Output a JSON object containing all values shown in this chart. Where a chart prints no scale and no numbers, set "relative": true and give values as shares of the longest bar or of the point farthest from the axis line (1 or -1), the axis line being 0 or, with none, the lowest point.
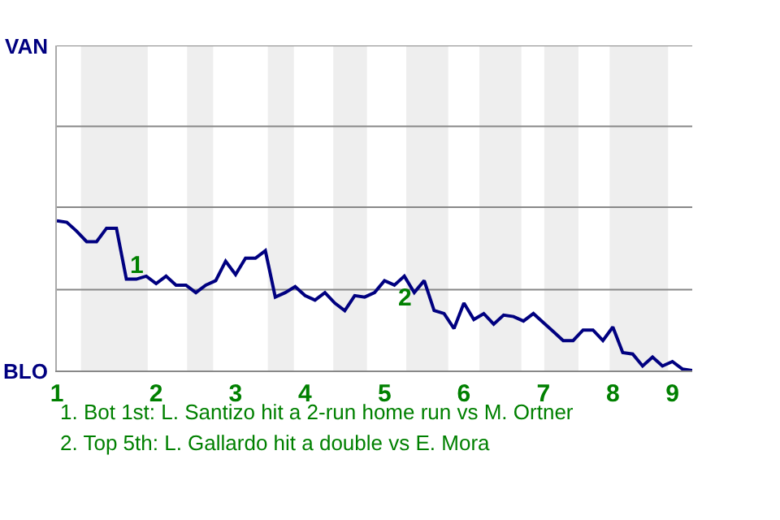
{
  "chart_data": {
    "type": "line",
    "relative": true,
    "categories": [
      "1",
      null,
      null,
      null,
      null,
      null,
      null,
      null,
      null,
      null,
      "2",
      null,
      null,
      null,
      null,
      null,
      null,
      null,
      "3",
      null,
      null,
      null,
      null,
      null,
      null,
      "4",
      null,
      null,
      null,
      null,
      null,
      null,
      null,
      "5",
      null,
      null,
      null,
      null,
      null,
      null,
      null,
      "6",
      null,
      null,
      null,
      null,
      null,
      null,
      null,
      "7",
      null,
      null,
      null,
      null,
      null,
      null,
      "8",
      null,
      null,
      null,
      null,
      null,
      "9",
      null,
      null
    ],
    "series": [
      {
        "color": "#000080",
        "values": [
          1,
          0.99,
          0.93,
          0.86,
          0.86,
          0.95,
          0.95,
          0.61,
          0.61,
          0.63,
          0.58,
          0.63,
          0.57,
          0.57,
          0.52,
          0.57,
          0.6,
          0.73,
          0.64,
          0.75,
          0.75,
          0.8,
          0.49,
          0.52,
          0.56,
          0.5,
          0.47,
          0.52,
          0.45,
          0.4,
          0.5,
          0.49,
          0.52,
          0.6,
          0.57,
          0.63,
          0.52,
          0.6,
          0.4,
          0.38,
          0.28,
          0.45,
          0.34,
          0.38,
          0.31,
          0.37,
          0.36,
          0.33,
          0.38,
          0.32,
          0.26,
          0.2,
          0.2,
          0.27,
          0.27,
          0.2,
          0.29,
          0.12,
          0.11,
          0.03,
          0.09,
          0.03,
          0.06,
          0.01,
          0
        ]
      }
    ],
    "ref_lines": [
      {
        "axis": "y",
        "value": 0.54,
        "color": "#888888"
      },
      {
        "axis": "y",
        "value": 1.09,
        "color": "#888888"
      },
      {
        "axis": "y",
        "value": 1.63,
        "color": "#888888"
      },
      {
        "axis": "y",
        "value": 2.17,
        "color": "#888888"
      }
    ],
    "marker": "none",
    "line_style": "solid",
    "annotations": [
      "VAN",
      "BLO",
      "1",
      "2",
      "1. Bot 1st: L. Santizo hit a 2-run home run vs M. Ortner",
      "2. Top 5th: L. Gallardo hit a double vs E. Mora"
    ]
  }
}
